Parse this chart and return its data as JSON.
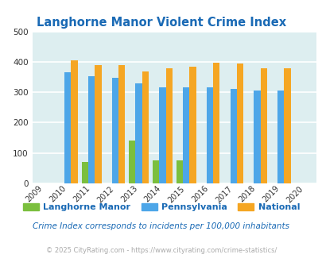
{
  "title": "Langhorne Manor Violent Crime Index",
  "all_years": [
    2009,
    2010,
    2011,
    2012,
    2013,
    2014,
    2015,
    2016,
    2017,
    2018,
    2019,
    2020
  ],
  "data_years": [
    2010,
    2011,
    2012,
    2013,
    2014,
    2015,
    2016,
    2017,
    2018,
    2019
  ],
  "langhorne": [
    0,
    70,
    0,
    140,
    75,
    75,
    0,
    0,
    0,
    0
  ],
  "pennsylvania": [
    365,
    352,
    348,
    328,
    315,
    315,
    315,
    310,
    305,
    305
  ],
  "national": [
    405,
    388,
    388,
    368,
    378,
    383,
    397,
    394,
    380,
    380
  ],
  "bar_width": 0.28,
  "ylim": [
    0,
    500
  ],
  "yticks": [
    0,
    100,
    200,
    300,
    400,
    500
  ],
  "color_langhorne": "#7bbf3e",
  "color_pennsylvania": "#4da6e8",
  "color_national": "#f5a623",
  "bg_color": "#ddeef0",
  "title_color": "#1a6ab5",
  "subtitle": "Crime Index corresponds to incidents per 100,000 inhabitants",
  "footer": "© 2025 CityRating.com - https://www.cityrating.com/crime-statistics/",
  "subtitle_color": "#1a6ab5",
  "footer_color": "#aaaaaa",
  "grid_color": "#ffffff"
}
